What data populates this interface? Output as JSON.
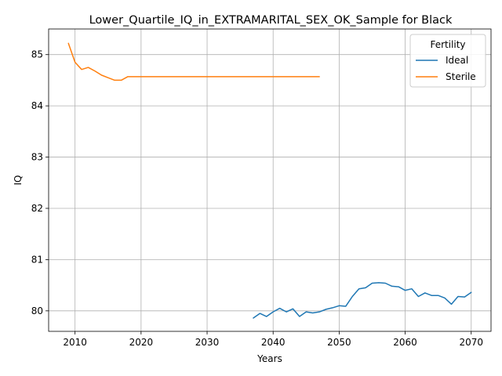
{
  "chart_data": {
    "type": "line",
    "title": "Lower_Quartile_IQ_in_EXTRAMARITAL_SEX_OK_Sample for Black",
    "xlabel": "Years",
    "ylabel": "IQ",
    "xlim": [
      2006,
      2073
    ],
    "ylim": [
      79.6,
      85.5
    ],
    "xticks": [
      2010,
      2020,
      2030,
      2040,
      2050,
      2060,
      2070
    ],
    "yticks": [
      80,
      81,
      82,
      83,
      84,
      85
    ],
    "grid": true,
    "legend": {
      "title": "Fertility",
      "placement": "top-right"
    },
    "series": [
      {
        "name": "Ideal",
        "color": "#1f77b4",
        "x": [
          2037,
          2038,
          2039,
          2040,
          2041,
          2042,
          2043,
          2044,
          2045,
          2046,
          2047,
          2048,
          2049,
          2050,
          2051,
          2052,
          2053,
          2054,
          2055,
          2056,
          2057,
          2058,
          2059,
          2060,
          2061,
          2062,
          2063,
          2064,
          2065,
          2066,
          2067,
          2068,
          2069,
          2070
        ],
        "y": [
          79.86,
          79.95,
          79.89,
          79.98,
          80.05,
          79.98,
          80.04,
          79.89,
          79.98,
          79.96,
          79.98,
          80.03,
          80.06,
          80.1,
          80.09,
          80.28,
          80.43,
          80.45,
          80.54,
          80.55,
          80.54,
          80.48,
          80.47,
          80.4,
          80.43,
          80.28,
          80.35,
          80.3,
          80.3,
          80.25,
          80.13,
          80.28,
          80.27,
          80.36
        ]
      },
      {
        "name": "Sterile",
        "color": "#ff7f0e",
        "x": [
          2009,
          2010,
          2011,
          2012,
          2013,
          2014,
          2015,
          2016,
          2017,
          2018,
          2019,
          2020,
          2025,
          2030,
          2035,
          2040,
          2045,
          2047
        ],
        "y": [
          85.22,
          84.85,
          84.71,
          84.75,
          84.68,
          84.6,
          84.55,
          84.5,
          84.5,
          84.57,
          84.57,
          84.57,
          84.57,
          84.57,
          84.57,
          84.57,
          84.57,
          84.57
        ]
      }
    ]
  }
}
